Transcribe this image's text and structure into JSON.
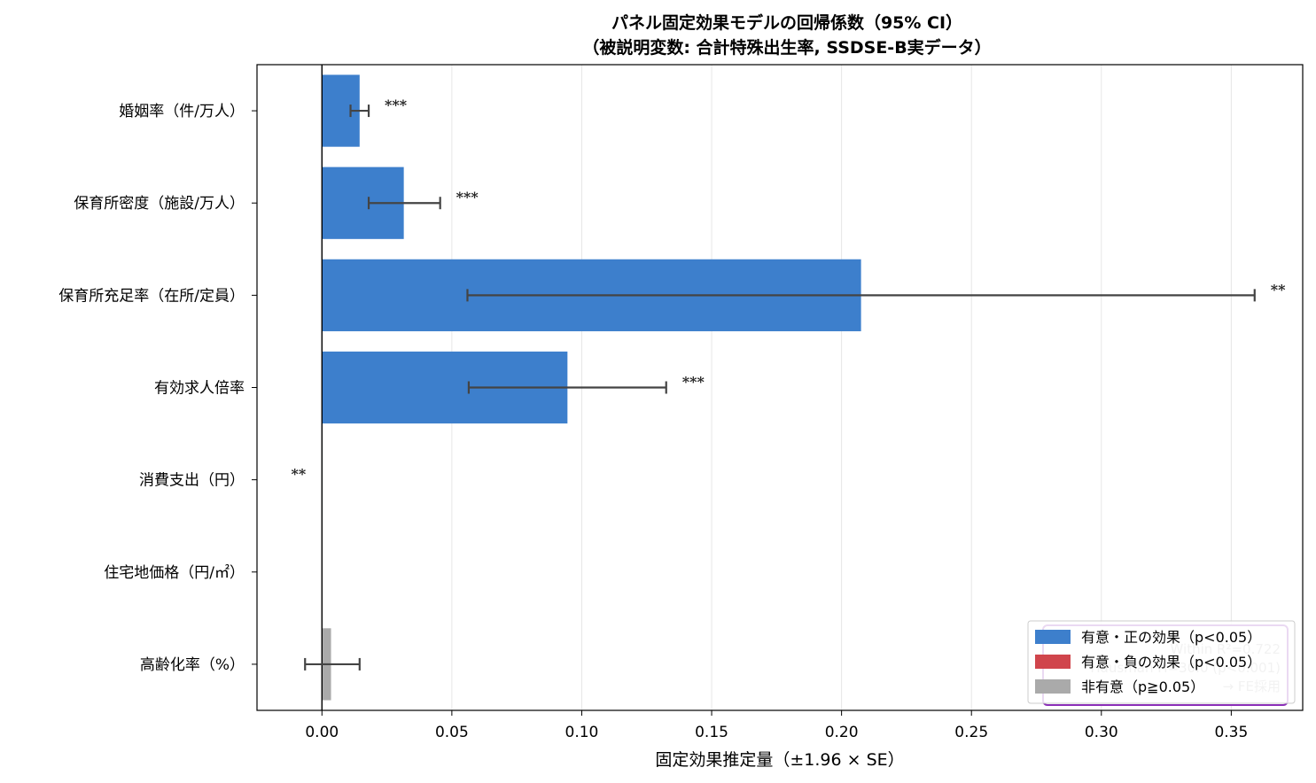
{
  "chart_data": {
    "type": "bar",
    "orientation": "horizontal",
    "title": "パネル固定効果モデルの回帰係数（95% CI）",
    "subtitle": "（被説明変数: 合計特殊出生率, SSDSE-B実データ）",
    "xlabel": "固定効果推定量（±1.96 × SE）",
    "ylabel": "",
    "xlim": [
      -0.025,
      0.3775
    ],
    "xticks": [
      0.0,
      0.05,
      0.1,
      0.15,
      0.2,
      0.25,
      0.3,
      0.35
    ],
    "xtick_labels": [
      "0.00",
      "0.05",
      "0.10",
      "0.15",
      "0.20",
      "0.25",
      "0.30",
      "0.35"
    ],
    "grid": "x",
    "legend_position": "lower-right",
    "colors": {
      "positive": "#3d7fcc",
      "negative": "#d0454c",
      "nonsig": "#aaaaaa",
      "errorbar": "#444444"
    },
    "categories": [
      "婚姻率（件/万人）",
      "保育所密度（施設/万人）",
      "保育所充足率（在所/定員）",
      "有効求人倍率",
      "消費支出（円）",
      "住宅地価格（円/㎡）",
      "高齢化率（%）"
    ],
    "values": [
      0.0145,
      0.0315,
      0.2075,
      0.0945,
      0.0001,
      0.0,
      0.0035
    ],
    "ci_low": [
      0.011,
      0.018,
      0.056,
      0.0565,
      0.0,
      0.0,
      -0.0065
    ],
    "ci_high": [
      0.018,
      0.0455,
      0.359,
      0.1325,
      0.0001,
      0.0,
      0.0145
    ],
    "significance": [
      "***",
      "***",
      "**",
      "***",
      "**",
      "",
      ""
    ],
    "effect_class": [
      "positive",
      "positive",
      "positive",
      "positive",
      "positive",
      "nonsig",
      "nonsig"
    ],
    "legend": [
      "有意・正の効果（p<0.05）",
      "有意・負の効果（p<0.05）",
      "非有意（p≧0.05）"
    ],
    "annotation_lines": [
      "Within R²=0.722",
      "Hausman H=30.0 (p<0.001)",
      "→ FE採用"
    ]
  }
}
